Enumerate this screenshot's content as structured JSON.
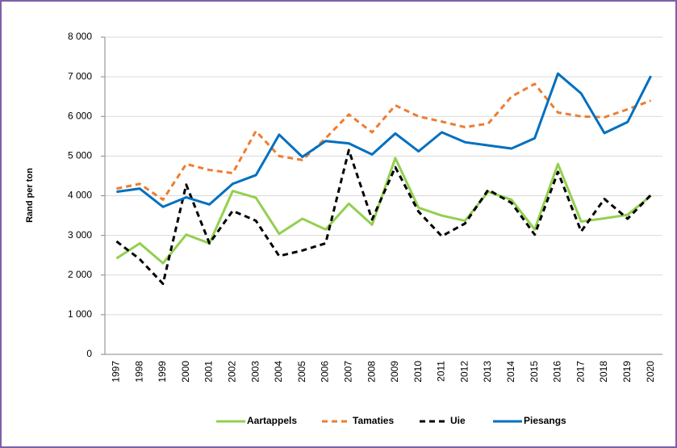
{
  "chart_data": {
    "type": "line",
    "y_label": "Rand per ton",
    "categories": [
      "1997",
      "1998",
      "1999",
      "2000",
      "2001",
      "2002",
      "2003",
      "2004",
      "2005",
      "2006",
      "2007",
      "2008",
      "2009",
      "2010",
      "2011",
      "2012",
      "2013",
      "2014",
      "2015",
      "2016",
      "2017",
      "2018",
      "2019",
      "2020"
    ],
    "series": [
      {
        "name": "Aartappels",
        "color": "#92d050",
        "dash": false,
        "values": [
          2420,
          2800,
          2300,
          3020,
          2800,
          4120,
          3950,
          3040,
          3420,
          3150,
          3800,
          3270,
          4950,
          3700,
          3500,
          3370,
          4100,
          3900,
          3150,
          4800,
          3350,
          3430,
          3520,
          4000
        ]
      },
      {
        "name": "Tamaties",
        "color": "#ed7d31",
        "dash": true,
        "values": [
          4180,
          4300,
          3900,
          4800,
          4650,
          4570,
          5630,
          5000,
          4900,
          5450,
          6050,
          5600,
          6280,
          6000,
          5870,
          5730,
          5820,
          6500,
          6820,
          6100,
          6000,
          5980,
          6180,
          6400
        ]
      },
      {
        "name": "Uie",
        "color": "#000000",
        "dash": true,
        "values": [
          2850,
          2400,
          1780,
          4280,
          2800,
          3620,
          3370,
          2480,
          2620,
          2800,
          5150,
          3400,
          4720,
          3600,
          2980,
          3300,
          4150,
          3820,
          3020,
          4600,
          3100,
          3920,
          3420,
          4020
        ]
      },
      {
        "name": "Piesangs",
        "color": "#0070c0",
        "dash": false,
        "values": [
          4100,
          4180,
          3720,
          3960,
          3780,
          4300,
          4520,
          5540,
          4980,
          5380,
          5320,
          5040,
          5570,
          5120,
          5600,
          5350,
          5270,
          5190,
          5450,
          7080,
          6580,
          5580,
          5860,
          7020
        ]
      }
    ],
    "ylim": [
      0,
      8000
    ],
    "yticks": [
      0,
      {
        "value": 1000,
        "label": "1 000"
      },
      {
        "value": 2000,
        "label": "2 000"
      },
      {
        "value": 3000,
        "label": "3 000"
      },
      {
        "value": 4000,
        "label": "4 000"
      },
      {
        "value": 5000,
        "label": "5 000"
      },
      {
        "value": 6000,
        "label": "6 000"
      },
      {
        "value": 7000,
        "label": "7 000"
      },
      {
        "value": 8000,
        "label": "8 000"
      }
    ],
    "grid": true,
    "legend": "bottom"
  }
}
